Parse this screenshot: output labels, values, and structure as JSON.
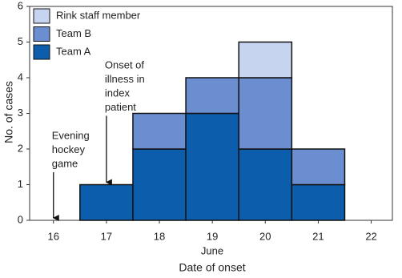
{
  "chart_data": {
    "type": "stacked_bar",
    "y_label": "No. of cases",
    "x_label": "Date of onset",
    "x_sublabel": "June",
    "x": [
      17,
      18,
      19,
      20,
      21
    ],
    "series": [
      {
        "name": "Team A",
        "color": "#0c5dab",
        "values": [
          1,
          2,
          3,
          2,
          1
        ]
      },
      {
        "name": "Team B",
        "color": "#6b8ed0",
        "values": [
          0,
          1,
          1,
          2,
          1
        ]
      },
      {
        "name": "Rink staff member",
        "color": "#c6d4ef",
        "values": [
          0,
          0,
          0,
          1,
          0
        ]
      }
    ],
    "xlim": [
      15.55,
      22.4
    ],
    "xticks": [
      16,
      17,
      18,
      19,
      20,
      21,
      22
    ],
    "ylim": [
      0,
      6
    ],
    "yticks": [
      0,
      1,
      2,
      3,
      4,
      5,
      6
    ],
    "annotations": [
      {
        "lines": [
          "Evening",
          "hockey",
          "game"
        ],
        "x": 16
      },
      {
        "lines": [
          "Onset of",
          "illness in",
          "index",
          "patient"
        ],
        "x": 17
      }
    ]
  }
}
